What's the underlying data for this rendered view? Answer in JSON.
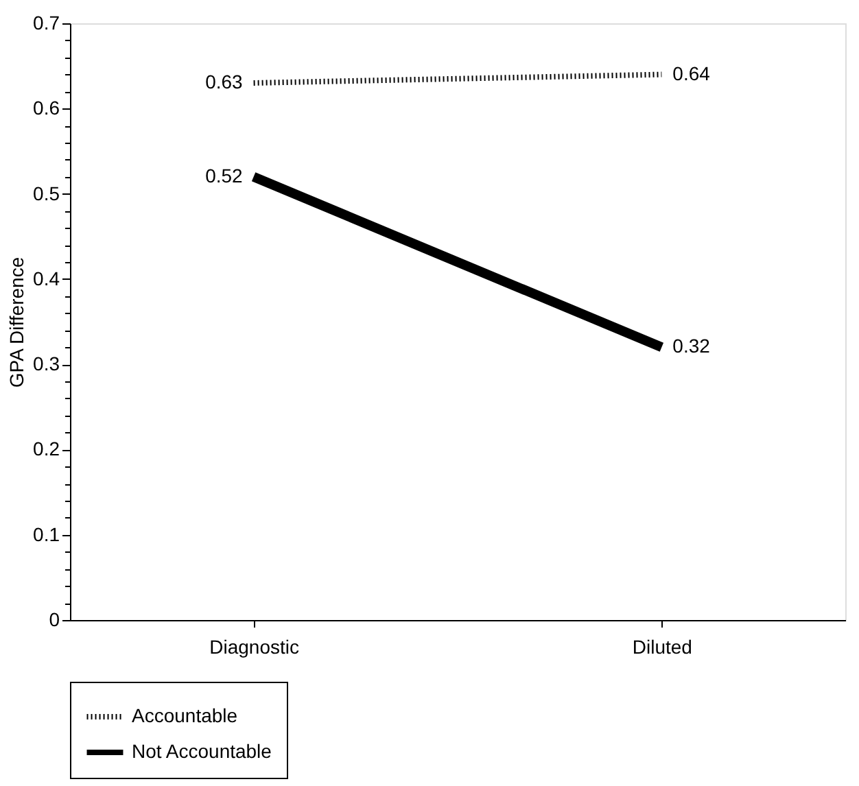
{
  "chart_data": {
    "type": "line",
    "ylabel": "GPA Difference",
    "categories": [
      "Diagnostic",
      "Diluted"
    ],
    "series": [
      {
        "name": "Accountable",
        "color": "#000000",
        "line_style": "dotted",
        "values": [
          0.63,
          0.64
        ]
      },
      {
        "name": "Not Accountable",
        "color": "#000000",
        "line_style": "solid",
        "values": [
          0.52,
          0.32
        ]
      }
    ],
    "ylim": [
      0,
      0.7
    ],
    "yticks": [
      0,
      {
        "value": 0.02,
        "label": null
      },
      {
        "value": 0.04,
        "label": null
      },
      {
        "value": 0.06,
        "label": null
      },
      {
        "value": 0.08,
        "label": null
      },
      0.1,
      {
        "value": 0.12,
        "label": null
      },
      {
        "value": 0.14,
        "label": null
      },
      {
        "value": 0.16,
        "label": null
      },
      {
        "value": 0.18,
        "label": null
      },
      0.2,
      {
        "value": 0.22,
        "label": null
      },
      {
        "value": 0.24,
        "label": null
      },
      {
        "value": 0.26,
        "label": null
      },
      {
        "value": 0.28,
        "label": null
      },
      0.3,
      {
        "value": 0.32,
        "label": null
      },
      {
        "value": 0.34,
        "label": null
      },
      {
        "value": 0.36,
        "label": null
      },
      {
        "value": 0.38,
        "label": null
      },
      0.4,
      {
        "value": 0.42,
        "label": null
      },
      {
        "value": 0.44,
        "label": null
      },
      {
        "value": 0.46,
        "label": null
      },
      {
        "value": 0.48,
        "label": null
      },
      0.5,
      {
        "value": 0.52,
        "label": null
      },
      {
        "value": 0.54,
        "label": null
      },
      {
        "value": 0.56,
        "label": null
      },
      {
        "value": 0.58,
        "label": null
      },
      0.6,
      {
        "value": 0.62,
        "label": null
      },
      {
        "value": 0.64,
        "label": null
      },
      {
        "value": 0.66,
        "label": null
      },
      {
        "value": 0.68,
        "label": null
      },
      0.7
    ],
    "data_labels": true,
    "grid": false,
    "legend": "bottom"
  }
}
